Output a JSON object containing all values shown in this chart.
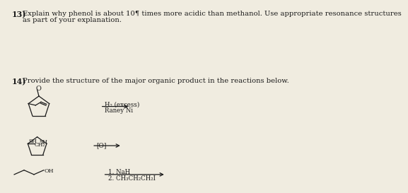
{
  "bg_color": "#f0ece0",
  "text_color": "#1a1a1a",
  "q13_number": "13)",
  "q13_text_line1": "Explain why phenol is about 10¶ times more acidic than methanol. Use appropriate resonance structures",
  "q13_text_line2": "as part of your explanation.",
  "q14_number": "14)",
  "q14_text": "Provide the structure of the major organic product in the reactions below.",
  "rxn1_reagent1": "H₂ (excess)",
  "rxn1_reagent2": "Raney Ni",
  "rxn2_reagent": "[O]",
  "rxn3_reagent1": "1. NaH",
  "rxn3_reagent2": "2. CH₃CH₂CH₂I"
}
